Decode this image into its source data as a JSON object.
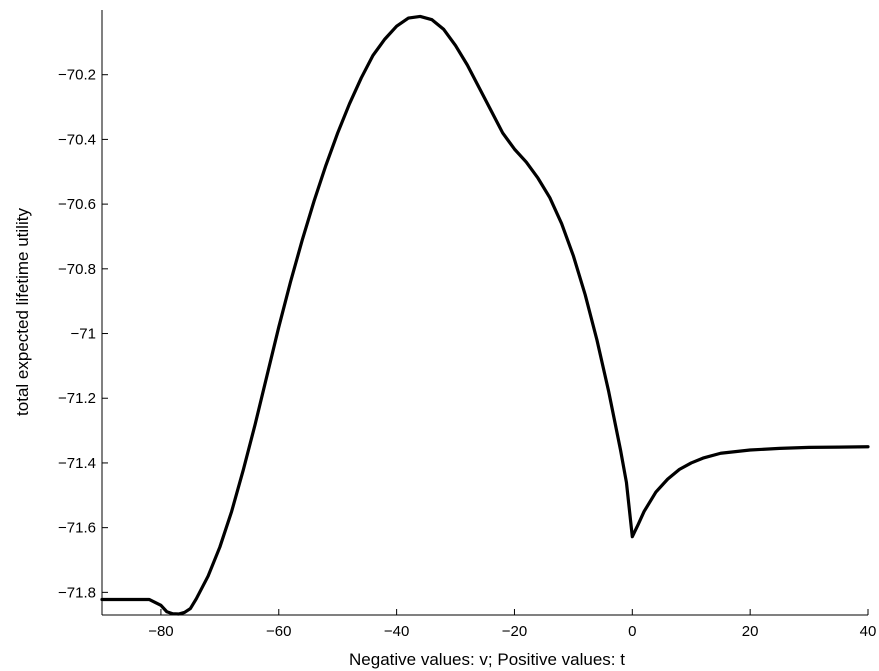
{
  "chart_data": {
    "type": "line",
    "title": "",
    "xlabel": "Negative values: v; Positive values: t",
    "ylabel": "total expected lifetime utility",
    "xlim": [
      -90,
      40
    ],
    "ylim": [
      -71.87,
      -70.0
    ],
    "grid": false,
    "x_ticks": [
      -80,
      -60,
      -40,
      -20,
      0,
      20,
      40
    ],
    "x_tick_labels": [
      "−80",
      "−60",
      "−40",
      "−20",
      "0",
      "20",
      "40"
    ],
    "y_ticks": [
      -71.8,
      -71.6,
      -71.4,
      -71.2,
      -71.0,
      -70.8,
      -70.6,
      -70.4,
      -70.2
    ],
    "y_tick_labels": [
      "−71.8",
      "−71.6",
      "−71.4",
      "−71.2",
      "−71",
      "−70.8",
      "−70.6",
      "−70.4",
      "−70.2"
    ],
    "series": [
      {
        "color": "#000000",
        "x": [
          -90,
          -86,
          -82,
          -80,
          -79,
          -78,
          -77,
          -76,
          -75,
          -74,
          -72,
          -70,
          -68,
          -66,
          -64,
          -62,
          -60,
          -58,
          -56,
          -54,
          -52,
          -50,
          -48,
          -46,
          -44,
          -42,
          -40,
          -38,
          -36,
          -34,
          -32,
          -30,
          -28,
          -26,
          -24,
          -22,
          -20,
          -18,
          -16,
          -14,
          -12,
          -10,
          -8,
          -6,
          -4,
          -2,
          -1,
          0,
          1,
          2,
          4,
          6,
          8,
          10,
          12,
          15,
          20,
          25,
          30,
          35,
          40
        ],
        "y": [
          -71.822,
          -71.822,
          -71.822,
          -71.84,
          -71.86,
          -71.866,
          -71.867,
          -71.862,
          -71.85,
          -71.82,
          -71.75,
          -71.66,
          -71.55,
          -71.42,
          -71.28,
          -71.13,
          -70.98,
          -70.84,
          -70.71,
          -70.59,
          -70.48,
          -70.38,
          -70.29,
          -70.21,
          -70.14,
          -70.09,
          -70.05,
          -70.025,
          -70.02,
          -70.03,
          -70.06,
          -70.11,
          -70.17,
          -70.24,
          -70.31,
          -70.38,
          -70.43,
          -70.47,
          -70.52,
          -70.58,
          -70.66,
          -70.76,
          -70.88,
          -71.02,
          -71.18,
          -71.36,
          -71.46,
          -71.628,
          -71.59,
          -71.55,
          -71.49,
          -71.45,
          -71.42,
          -71.4,
          -71.385,
          -71.37,
          -71.36,
          -71.355,
          -71.352,
          -71.351,
          -71.35
        ]
      }
    ]
  }
}
